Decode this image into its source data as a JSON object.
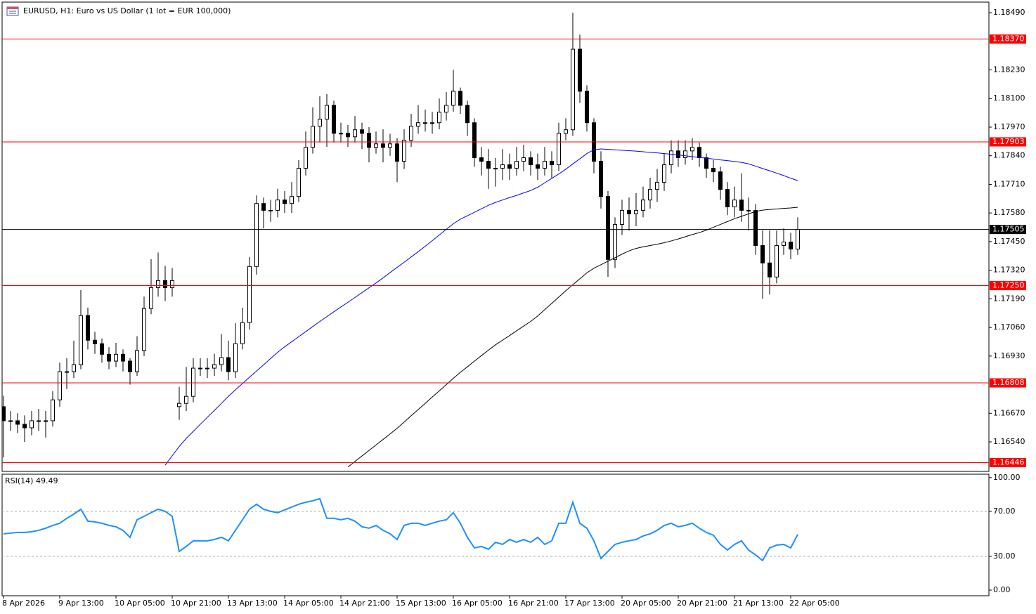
{
  "chart_data": [
    {
      "type": "candlestick",
      "title": "EURUSD, H1:  Euro vs US Dollar (1 lot = EUR 100,000)",
      "categories": [
        "8 Apr 2026",
        null,
        null,
        null,
        null,
        null,
        null,
        null,
        "9 Apr 13:00",
        null,
        null,
        null,
        null,
        null,
        null,
        null,
        "10 Apr 05:00",
        null,
        null,
        null,
        null,
        null,
        null,
        null,
        "10 Apr 21:00",
        null,
        null,
        null,
        null,
        null,
        null,
        null,
        "13 Apr 13:00",
        null,
        null,
        null,
        null,
        null,
        null,
        null,
        "14 Apr 05:00",
        null,
        null,
        null,
        null,
        null,
        null,
        null,
        "14 Apr 21:00",
        null,
        null,
        null,
        null,
        null,
        null,
        null,
        "15 Apr 13:00",
        null,
        null,
        null,
        null,
        null,
        null,
        null,
        "16 Apr 05:00",
        null,
        null,
        null,
        null,
        null,
        null,
        null,
        "16 Apr 21:00",
        null,
        null,
        null,
        null,
        null,
        null,
        null,
        "17 Apr 13:00",
        null,
        null,
        null,
        null,
        null,
        null,
        null,
        "20 Apr 05:00",
        null,
        null,
        null,
        null,
        null,
        null,
        null,
        "20 Apr 21:00",
        null,
        null,
        null,
        null,
        null,
        null,
        null,
        "21 Apr 13:00",
        null,
        null,
        null,
        null,
        null,
        null,
        null,
        "22 Apr 05:00",
        null
      ],
      "open": [
        1.167,
        1.16636,
        1.16636,
        1.1662,
        1.16604,
        1.16636,
        1.16636,
        1.16636,
        1.16731,
        1.16859,
        1.16859,
        1.16891,
        1.17114,
        1.17002,
        1.16986,
        1.16938,
        1.16907,
        1.16938,
        1.16907,
        1.16859,
        1.16955,
        1.17146,
        1.17241,
        1.17273,
        1.17241,
        1.167,
        1.16715,
        1.16747,
        1.16875,
        1.16875,
        1.16875,
        1.16891,
        1.16923,
        1.16859,
        1.16986,
        1.17082,
        1.17337,
        1.17623,
        1.17592,
        1.17592,
        1.17639,
        1.17623,
        1.17655,
        1.17783,
        1.17878,
        1.17974,
        1.18006,
        1.18069,
        1.17942,
        1.17942,
        1.17926,
        1.17958,
        1.17942,
        1.17878,
        1.17894,
        1.17878,
        1.17894,
        1.17815,
        1.1791,
        1.17974,
        1.1799,
        1.1799,
        1.1799,
        1.18038,
        1.18069,
        1.18133,
        1.18069,
        1.1799,
        1.17831,
        1.17815,
        1.17783,
        1.17783,
        1.17799,
        1.17783,
        1.17815,
        1.17831,
        1.17799,
        1.17783,
        1.17815,
        1.17799,
        1.17942,
        1.17958,
        1.18324,
        1.18133,
        1.1799,
        1.17815,
        1.17655,
        1.17369,
        1.17528,
        1.17592,
        1.17576,
        1.17592,
        1.17639,
        1.17687,
        1.17719,
        1.17799,
        1.17862,
        1.17831,
        1.17862,
        1.17878,
        1.17831,
        1.17783,
        1.17767,
        1.17687,
        1.17608,
        1.17639,
        1.17592,
        1.17592,
        1.17432,
        1.17353,
        1.17289,
        1.17432,
        1.17448,
        1.17416
      ],
      "high": [
        1.1675,
        1.1668,
        1.1667,
        1.1666,
        1.1668,
        1.1669,
        1.1668,
        1.1677,
        1.169,
        1.1692,
        1.17,
        1.1723,
        1.1715,
        1.1704,
        1.1701,
        1.1697,
        1.1699,
        1.1696,
        1.1692,
        1.1702,
        1.172,
        1.1737,
        1.174,
        1.1734,
        1.1733,
        1.1679,
        1.1688,
        1.1692,
        1.1692,
        1.1692,
        1.1694,
        1.1703,
        1.17,
        1.1708,
        1.1715,
        1.1738,
        1.1766,
        1.1765,
        1.1764,
        1.1769,
        1.1768,
        1.1772,
        1.1782,
        1.1795,
        1.1806,
        1.1811,
        1.1812,
        1.1809,
        1.1799,
        1.1798,
        1.1802,
        1.1799,
        1.1797,
        1.1795,
        1.1796,
        1.1794,
        1.1792,
        1.1796,
        1.1803,
        1.1807,
        1.1805,
        1.1804,
        1.181,
        1.1813,
        1.1823,
        1.1815,
        1.1809,
        1.1801,
        1.1788,
        1.1787,
        1.1783,
        1.1787,
        1.1785,
        1.1788,
        1.1789,
        1.1786,
        1.1785,
        1.1788,
        1.1786,
        1.1799,
        1.1801,
        1.1849,
        1.1839,
        1.1816,
        1.1801,
        1.1786,
        1.1768,
        1.1756,
        1.1764,
        1.1765,
        1.1767,
        1.177,
        1.1774,
        1.1778,
        1.1785,
        1.1791,
        1.1791,
        1.1791,
        1.1792,
        1.179,
        1.1785,
        1.1782,
        1.1779,
        1.1772,
        1.177,
        1.1776,
        1.1765,
        1.1762,
        1.175,
        1.175,
        1.175,
        1.1751,
        1.1749,
        1.1756
      ],
      "low": [
        1.1647,
        1.1659,
        1.1658,
        1.1654,
        1.1657,
        1.1659,
        1.1656,
        1.1661,
        1.167,
        1.1678,
        1.1683,
        1.1687,
        1.1696,
        1.1694,
        1.169,
        1.1687,
        1.1688,
        1.1686,
        1.168,
        1.1684,
        1.1693,
        1.1712,
        1.172,
        1.1718,
        1.172,
        1.1664,
        1.1668,
        1.1672,
        1.1684,
        1.1683,
        1.1684,
        1.1686,
        1.1682,
        1.1683,
        1.1696,
        1.1705,
        1.173,
        1.1751,
        1.1754,
        1.1756,
        1.1758,
        1.1758,
        1.1763,
        1.1775,
        1.1785,
        1.179,
        1.1788,
        1.179,
        1.179,
        1.1788,
        1.179,
        1.1787,
        1.1781,
        1.1785,
        1.1781,
        1.1784,
        1.1772,
        1.1778,
        1.1788,
        1.1794,
        1.1795,
        1.1794,
        1.1796,
        1.18,
        1.1804,
        1.1803,
        1.1793,
        1.1779,
        1.1775,
        1.1769,
        1.177,
        1.1773,
        1.1773,
        1.1775,
        1.1777,
        1.1775,
        1.1773,
        1.1775,
        1.1774,
        1.1777,
        1.1791,
        1.1793,
        1.1808,
        1.1795,
        1.1776,
        1.176,
        1.1729,
        1.1733,
        1.1748,
        1.175,
        1.1752,
        1.1756,
        1.176,
        1.1763,
        1.1768,
        1.1776,
        1.1779,
        1.178,
        1.1782,
        1.1779,
        1.1774,
        1.1772,
        1.1764,
        1.1757,
        1.1756,
        1.1754,
        1.175,
        1.1739,
        1.1719,
        1.1721,
        1.1726,
        1.1739,
        1.1737,
        1.1739
      ],
      "close": [
        1.16636,
        1.16636,
        1.1662,
        1.16604,
        1.16636,
        1.16636,
        1.16636,
        1.16731,
        1.16859,
        1.16859,
        1.16891,
        1.17114,
        1.17002,
        1.16986,
        1.16938,
        1.16907,
        1.16938,
        1.16907,
        1.16859,
        1.16955,
        1.17146,
        1.17241,
        1.17273,
        1.17241,
        1.17273,
        1.16715,
        1.16747,
        1.16875,
        1.16875,
        1.16875,
        1.16891,
        1.16923,
        1.16859,
        1.16986,
        1.17082,
        1.17337,
        1.17623,
        1.17592,
        1.17592,
        1.17639,
        1.17623,
        1.17655,
        1.17783,
        1.17878,
        1.17974,
        1.18006,
        1.18069,
        1.17942,
        1.17942,
        1.17926,
        1.17958,
        1.17942,
        1.17878,
        1.17894,
        1.17878,
        1.17894,
        1.17815,
        1.1791,
        1.17974,
        1.1799,
        1.1799,
        1.1799,
        1.18038,
        1.18069,
        1.18133,
        1.18069,
        1.1799,
        1.17831,
        1.17815,
        1.17783,
        1.17783,
        1.17799,
        1.17783,
        1.17815,
        1.17831,
        1.17799,
        1.17783,
        1.17815,
        1.17799,
        1.17942,
        1.17958,
        1.18324,
        1.18133,
        1.1799,
        1.17815,
        1.17655,
        1.17369,
        1.17528,
        1.17592,
        1.17576,
        1.17592,
        1.17639,
        1.17687,
        1.17719,
        1.17799,
        1.17862,
        1.17831,
        1.17862,
        1.17878,
        1.17831,
        1.17783,
        1.17767,
        1.17687,
        1.17608,
        1.17639,
        1.17592,
        1.17592,
        1.17432,
        1.17353,
        1.17289,
        1.17432,
        1.17448,
        1.17416,
        1.17505
      ],
      "up_color": "#ffffff",
      "down_color": "#000000",
      "series": [
        {
          "color": "#0000ff",
          "values": [
            null,
            null,
            null,
            null,
            null,
            null,
            null,
            null,
            null,
            null,
            null,
            null,
            null,
            null,
            null,
            null,
            null,
            null,
            null,
            null,
            null,
            null,
            null,
            1.16434,
            1.16477,
            1.16519,
            1.16556,
            1.16588,
            1.1662,
            1.16652,
            1.16683,
            1.16715,
            1.16747,
            1.16777,
            1.16805,
            1.16834,
            1.16862,
            1.1689,
            1.16919,
            1.16947,
            1.16972,
            1.16995,
            1.17018,
            1.17041,
            1.17064,
            1.17087,
            1.17109,
            1.17131,
            1.17153,
            1.17174,
            1.17196,
            1.17218,
            1.1724,
            1.17262,
            1.17285,
            1.17309,
            1.17333,
            1.17356,
            1.1738,
            1.17404,
            1.17429,
            1.17454,
            1.1748,
            1.17506,
            1.17531,
            1.17552,
            1.17567,
            1.17583,
            1.17599,
            1.17615,
            1.17628,
            1.17639,
            1.1765,
            1.1766,
            1.17671,
            1.17682,
            1.17697,
            1.17717,
            1.17737,
            1.17757,
            1.17779,
            1.17803,
            1.17826,
            1.1785,
            1.17867,
            1.17871,
            1.17869,
            1.17867,
            1.17865,
            1.17863,
            1.17861,
            1.17858,
            1.17855,
            1.17853,
            1.1785,
            1.17847,
            1.17844,
            1.1784,
            1.17836,
            1.17832,
            1.17829,
            1.17825,
            1.17821,
            1.17818,
            1.17814,
            1.1781,
            1.17803,
            1.17793,
            1.17782,
            1.17772,
            1.17761,
            1.1775,
            1.17738,
            1.17727
          ]
        },
        {
          "color": "#000000",
          "values": [
            null,
            null,
            null,
            null,
            null,
            null,
            null,
            null,
            null,
            null,
            null,
            null,
            null,
            null,
            null,
            null,
            null,
            null,
            null,
            null,
            null,
            null,
            null,
            null,
            null,
            null,
            null,
            null,
            null,
            null,
            null,
            null,
            null,
            null,
            null,
            null,
            null,
            null,
            null,
            null,
            null,
            null,
            null,
            null,
            null,
            null,
            null,
            null,
            null,
            1.16426,
            1.16451,
            1.16476,
            1.16501,
            1.16526,
            1.16551,
            1.16576,
            1.16602,
            1.1663,
            1.16659,
            1.16687,
            1.16715,
            1.16744,
            1.16772,
            1.168,
            1.16829,
            1.16856,
            1.16881,
            1.16907,
            1.16932,
            1.16957,
            1.16981,
            1.17002,
            1.17023,
            1.17045,
            1.17066,
            1.17087,
            1.17112,
            1.17141,
            1.17169,
            1.17198,
            1.17227,
            1.17254,
            1.17281,
            1.17308,
            1.17329,
            1.17345,
            1.17361,
            1.17377,
            1.17393,
            1.17408,
            1.17419,
            1.17426,
            1.17432,
            1.17438,
            1.17445,
            1.17453,
            1.17462,
            1.17472,
            1.17482,
            1.17491,
            1.17502,
            1.17515,
            1.17528,
            1.17541,
            1.17554,
            1.17565,
            1.17576,
            1.17587,
            1.17593,
            1.17596,
            1.17598,
            1.17601,
            1.17603,
            1.17606
          ]
        }
      ],
      "ylim": [
        1.16406,
        1.18538
      ],
      "yticks": [
        {
          "value": 1.1849,
          "label": "1.18490"
        },
        {
          "value": 1.1823,
          "label": "1.18230"
        },
        {
          "value": 1.181,
          "label": "1.18100"
        },
        {
          "value": 1.1797,
          "label": "1.17970"
        },
        {
          "value": 1.1784,
          "label": "1.17840"
        },
        {
          "value": 1.1771,
          "label": "1.17710"
        },
        {
          "value": 1.1758,
          "label": "1.17580"
        },
        {
          "value": 1.1745,
          "label": "1.17450"
        },
        {
          "value": 1.1732,
          "label": "1.17320"
        },
        {
          "value": 1.1719,
          "label": "1.17190"
        },
        {
          "value": 1.1706,
          "label": "1.17060"
        },
        {
          "value": 1.1693,
          "label": "1.16930"
        },
        {
          "value": 1.1667,
          "label": "1.16670"
        },
        {
          "value": 1.1654,
          "label": "1.16540"
        }
      ],
      "levels": [
        {
          "value": 1.1837,
          "label": "1.18370",
          "color": "#ff0000"
        },
        {
          "value": 1.17903,
          "label": "1.17903",
          "color": "#ff0000"
        },
        {
          "value": 1.1725,
          "label": "1.17250",
          "color": "#ff0000"
        },
        {
          "value": 1.16808,
          "label": "1.16808",
          "color": "#ff0000"
        },
        {
          "value": 1.16446,
          "label": "1.16446",
          "color": "#ff0000"
        },
        {
          "value": 1.17505,
          "label": "1.17505",
          "color": "#000000"
        }
      ]
    },
    {
      "type": "line",
      "title": "RSI(14) 49.49",
      "series": [
        {
          "color": "#1e90ff",
          "values": [
            50.0,
            50.6,
            51.3,
            51.3,
            51.9,
            53.1,
            55.0,
            57.5,
            59.4,
            63.8,
            67.5,
            71.9,
            61.3,
            60.6,
            59.4,
            57.5,
            56.3,
            53.1,
            46.9,
            62.5,
            65.6,
            68.8,
            71.9,
            70.0,
            65.6,
            34.4,
            38.8,
            43.8,
            43.8,
            43.8,
            45.0,
            46.9,
            43.8,
            53.1,
            62.5,
            71.9,
            76.3,
            71.9,
            70.0,
            68.8,
            71.3,
            73.8,
            76.3,
            78.1,
            79.4,
            81.3,
            63.8,
            63.8,
            62.5,
            63.8,
            61.3,
            56.3,
            55.0,
            57.5,
            53.1,
            50.0,
            45.0,
            57.5,
            59.4,
            59.4,
            57.5,
            59.4,
            61.3,
            62.5,
            68.8,
            59.4,
            46.9,
            37.5,
            38.8,
            36.3,
            42.5,
            40.6,
            45.0,
            42.5,
            45.0,
            42.5,
            46.9,
            40.6,
            43.8,
            59.4,
            59.4,
            78.1,
            59.4,
            55.0,
            43.8,
            28.1,
            34.4,
            40.6,
            42.5,
            43.8,
            45.0,
            48.1,
            50.0,
            53.1,
            57.5,
            59.4,
            56.3,
            57.5,
            59.4,
            55.0,
            51.3,
            48.8,
            40.6,
            35.6,
            40.6,
            43.8,
            35.6,
            31.3,
            26.3,
            37.5,
            40.0,
            40.6,
            37.5,
            49.49
          ]
        }
      ],
      "ylim": [
        -5,
        103
      ],
      "yticks": [
        {
          "value": 100,
          "label": "100.00"
        },
        {
          "value": 70,
          "label": "70.00"
        },
        {
          "value": 30,
          "label": "30.00"
        },
        {
          "value": 0,
          "label": "0.00"
        }
      ],
      "levels": [
        70,
        30
      ]
    }
  ]
}
